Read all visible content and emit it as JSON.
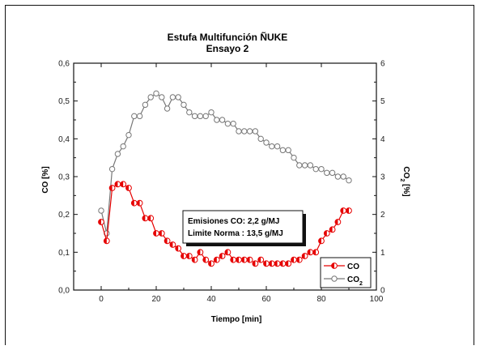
{
  "chart_data": {
    "type": "line",
    "title": "Estufa Multifunción ÑUKE",
    "subtitle": "Ensayo 2",
    "xlabel": "Tiempo [min]",
    "ylabel": "CO [%]",
    "y2label_main": "CO",
    "y2label_sub": "2",
    "y2label_tail": " [%]",
    "xlim": [
      -10,
      100
    ],
    "ylim": [
      0,
      0.6
    ],
    "y2lim": [
      0,
      6
    ],
    "x_ticks": [
      "0",
      "20",
      "40",
      "60",
      "80",
      "100"
    ],
    "y_ticks": [
      "0,0",
      "0,1",
      "0,2",
      "0,3",
      "0,4",
      "0,5",
      "0,6"
    ],
    "y2_ticks": [
      "0",
      "1",
      "2",
      "3",
      "4",
      "5",
      "6"
    ],
    "grid": false,
    "legend_position": "bottom-right",
    "annotation": {
      "line1": "Emisiones CO:   2,2 g/MJ",
      "line2": "Limite Norma : 13,5 g/MJ"
    },
    "series": [
      {
        "name": "CO",
        "axis": "left",
        "color": "#e60000",
        "marker": "half-filled-circle",
        "x": [
          0,
          2,
          4,
          6,
          8,
          10,
          12,
          14,
          16,
          18,
          20,
          22,
          24,
          26,
          28,
          30,
          32,
          34,
          36,
          38,
          40,
          42,
          44,
          46,
          48,
          50,
          52,
          54,
          56,
          58,
          60,
          62,
          64,
          66,
          68,
          70,
          72,
          74,
          76,
          78,
          80,
          82,
          84,
          86,
          88,
          90
        ],
        "values": [
          0.18,
          0.13,
          0.27,
          0.28,
          0.28,
          0.27,
          0.23,
          0.23,
          0.19,
          0.19,
          0.15,
          0.15,
          0.13,
          0.12,
          0.11,
          0.09,
          0.09,
          0.08,
          0.1,
          0.08,
          0.07,
          0.08,
          0.09,
          0.1,
          0.08,
          0.08,
          0.08,
          0.08,
          0.07,
          0.08,
          0.07,
          0.07,
          0.07,
          0.07,
          0.07,
          0.08,
          0.08,
          0.09,
          0.1,
          0.1,
          0.13,
          0.15,
          0.16,
          0.18,
          0.21,
          0.21
        ]
      },
      {
        "name": "CO2",
        "name_main": "CO",
        "name_sub": "2",
        "axis": "right",
        "color": "#777777",
        "marker": "open-circle",
        "x": [
          0,
          2,
          4,
          6,
          8,
          10,
          12,
          14,
          16,
          18,
          20,
          22,
          24,
          26,
          28,
          30,
          32,
          34,
          36,
          38,
          40,
          42,
          44,
          46,
          48,
          50,
          52,
          54,
          56,
          58,
          60,
          62,
          64,
          66,
          68,
          70,
          72,
          74,
          76,
          78,
          80,
          82,
          84,
          86,
          88,
          90
        ],
        "values": [
          2.1,
          1.5,
          3.2,
          3.6,
          3.8,
          4.1,
          4.6,
          4.6,
          4.9,
          5.1,
          5.2,
          5.1,
          4.8,
          5.1,
          5.1,
          4.9,
          4.7,
          4.6,
          4.6,
          4.6,
          4.7,
          4.5,
          4.5,
          4.4,
          4.4,
          4.2,
          4.2,
          4.2,
          4.2,
          4.0,
          3.9,
          3.8,
          3.8,
          3.7,
          3.7,
          3.5,
          3.3,
          3.3,
          3.3,
          3.2,
          3.2,
          3.1,
          3.1,
          3.0,
          3.0,
          2.9
        ]
      }
    ]
  }
}
